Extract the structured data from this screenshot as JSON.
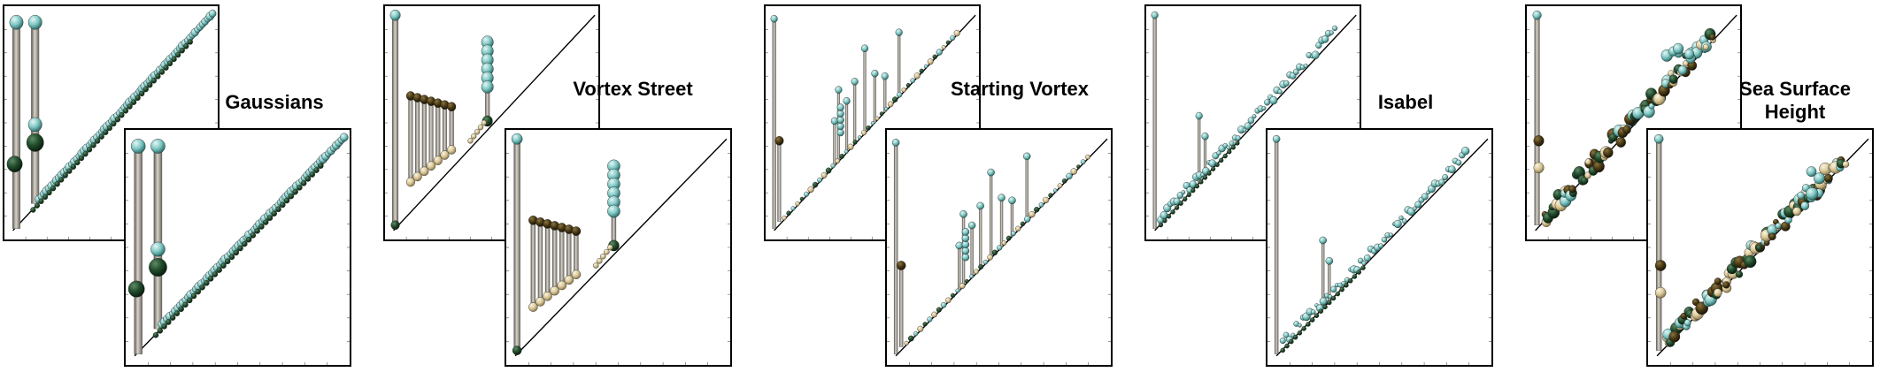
{
  "figure": {
    "panels": [
      {
        "id": "gaussians",
        "label": "Gaussians",
        "pattern": "two-tall"
      },
      {
        "id": "vortex-street",
        "label": "Vortex Street",
        "pattern": "tan-cluster"
      },
      {
        "id": "starting-vortex",
        "label": "Starting Vortex",
        "pattern": "scattered"
      },
      {
        "id": "isabel",
        "label": "Isabel",
        "pattern": "single-tall"
      },
      {
        "id": "sea-surface-height",
        "label": "Sea Surface Height",
        "pattern": "dense"
      }
    ]
  },
  "colors": {
    "teal": "#7fc7c4",
    "dark_green": "#1f4a2a",
    "tan": "#d9c89a",
    "dark_brown": "#4a3a14",
    "pillar": "#9b968c",
    "diagonal": "#000000"
  }
}
